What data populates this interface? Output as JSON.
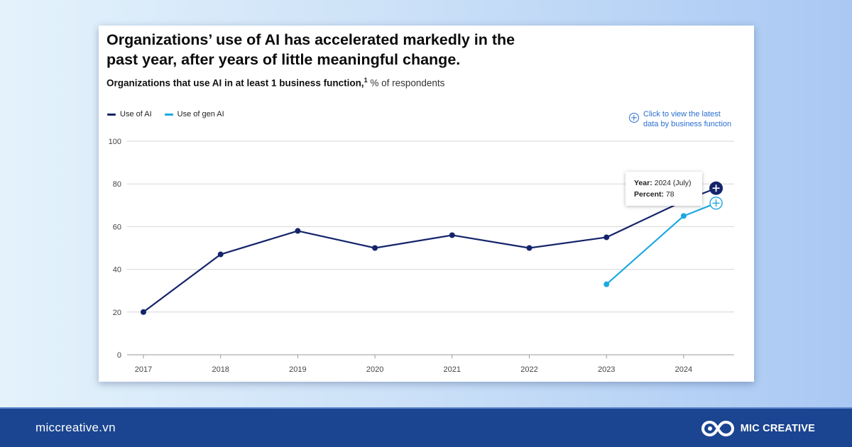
{
  "title": "Organizations’ use of AI has accelerated markedly in the past year, after years of little meaningful change.",
  "subtitle_bold": "Organizations that use AI in at least 1 business function,",
  "subtitle_footnote": "1",
  "subtitle_rest": " % of respondents",
  "cta_label": "Click to view the latest data by business function",
  "tooltip": {
    "year_label": "Year:",
    "year_value": " 2024 (July)",
    "percent_label": "Percent:",
    "percent_value": " 78"
  },
  "footer": {
    "site": "miccreative.vn",
    "brand": "MIC CREATIVE"
  },
  "colors": {
    "use_of_ai": "#14246b",
    "use_of_gen_ai": "#1ea8e0",
    "link": "#2a6fd0",
    "footer_bg": "#1b4590"
  },
  "chart_data": {
    "type": "line",
    "categories": [
      "2017",
      "2018",
      "2019",
      "2020",
      "2021",
      "2022",
      "2023",
      "2024"
    ],
    "ylim": [
      0,
      100
    ],
    "yticks": [
      "0",
      "20",
      "40",
      "60",
      "80",
      "100"
    ],
    "grid": true,
    "legend_position": "top-left",
    "series": [
      {
        "name": "Use of AI",
        "color": "#14246b",
        "points": [
          {
            "x": 2017,
            "y": 20
          },
          {
            "x": 2018,
            "y": 47
          },
          {
            "x": 2019,
            "y": 58
          },
          {
            "x": 2020,
            "y": 50
          },
          {
            "x": 2021,
            "y": 56
          },
          {
            "x": 2022,
            "y": 50
          },
          {
            "x": 2023,
            "y": 55
          },
          {
            "x": 2024,
            "y": 72
          },
          {
            "x": 2024.42,
            "y": 78
          }
        ]
      },
      {
        "name": "Use of gen AI",
        "color": "#1ea8e0",
        "points": [
          {
            "x": 2023,
            "y": 33
          },
          {
            "x": 2024,
            "y": 65
          },
          {
            "x": 2024.42,
            "y": 71
          }
        ]
      }
    ]
  }
}
